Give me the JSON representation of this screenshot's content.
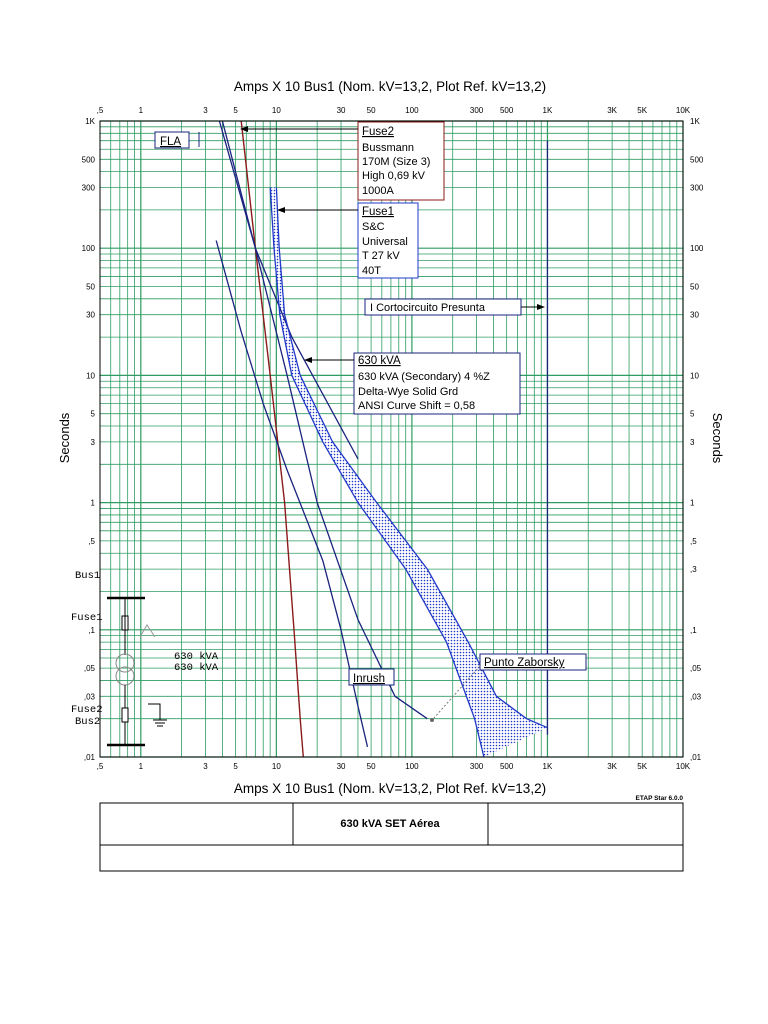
{
  "chart_data": {
    "type": "line",
    "scale": {
      "x": "log",
      "y": "log"
    },
    "xlim": [
      0.5,
      10000
    ],
    "ylim": [
      0.01,
      1000
    ],
    "x_title_top": "Amps  X  10   Bus1 (Nom. kV=13,2, Plot Ref. kV=13,2)",
    "x_title_bottom": "Amps  X  10   Bus1 (Nom. kV=13,2, Plot Ref. kV=13,2)",
    "y_title": "Seconds",
    "x_ticks": [
      {
        "v": 0.5,
        "t": ",5"
      },
      {
        "v": 1,
        "t": "1"
      },
      {
        "v": 3,
        "t": "3"
      },
      {
        "v": 5,
        "t": "5"
      },
      {
        "v": 10,
        "t": "10"
      },
      {
        "v": 30,
        "t": "30"
      },
      {
        "v": 50,
        "t": "50"
      },
      {
        "v": 100,
        "t": "100"
      },
      {
        "v": 300,
        "t": "300"
      },
      {
        "v": 500,
        "t": "500"
      },
      {
        "v": 1000,
        "t": "1K"
      },
      {
        "v": 3000,
        "t": "3K"
      },
      {
        "v": 5000,
        "t": "5K"
      },
      {
        "v": 10000,
        "t": "10K"
      }
    ],
    "y_ticks_left": [
      {
        "v": 1000,
        "t": "1K"
      },
      {
        "v": 500,
        "t": "500"
      },
      {
        "v": 300,
        "t": "300"
      },
      {
        "v": 100,
        "t": "100"
      },
      {
        "v": 50,
        "t": "50"
      },
      {
        "v": 30,
        "t": "30"
      },
      {
        "v": 10,
        "t": "10"
      },
      {
        "v": 5,
        "t": "5"
      },
      {
        "v": 3,
        "t": "3"
      },
      {
        "v": 1,
        "t": "1"
      },
      {
        "v": 0.5,
        "t": ",5"
      },
      {
        "v": 0.1,
        "t": ",1"
      },
      {
        "v": 0.05,
        "t": ",05"
      },
      {
        "v": 0.03,
        "t": ",03"
      },
      {
        "v": 0.01,
        "t": ",01"
      }
    ],
    "y_ticks_right": [
      {
        "v": 1000,
        "t": "1K"
      },
      {
        "v": 500,
        "t": "500"
      },
      {
        "v": 300,
        "t": "300"
      },
      {
        "v": 100,
        "t": "100"
      },
      {
        "v": 50,
        "t": "50"
      },
      {
        "v": 30,
        "t": "30"
      },
      {
        "v": 10,
        "t": "10"
      },
      {
        "v": 5,
        "t": "5"
      },
      {
        "v": 3,
        "t": "3"
      },
      {
        "v": 1,
        "t": "1"
      },
      {
        "v": 0.5,
        "t": ",5"
      },
      {
        "v": 0.3,
        "t": ",3"
      },
      {
        "v": 0.1,
        "t": ",1"
      },
      {
        "v": 0.05,
        "t": ",05"
      },
      {
        "v": 0.03,
        "t": ",03"
      },
      {
        "v": 0.01,
        "t": ",01"
      }
    ],
    "curves": [
      {
        "id": "fuse2",
        "color": "#8b1a1a",
        "points": [
          [
            5.5,
            1000
          ],
          [
            7,
            100
          ],
          [
            9,
            10
          ],
          [
            11.5,
            1
          ],
          [
            13.5,
            0.1
          ],
          [
            15,
            0.02
          ],
          [
            15.8,
            0.01
          ]
        ]
      },
      {
        "id": "transformer-1",
        "color": "#1a237e",
        "points": [
          [
            3.8,
            1000
          ],
          [
            7,
            100
          ],
          [
            13,
            20
          ],
          [
            24,
            6
          ],
          [
            40,
            2.2
          ]
        ]
      },
      {
        "id": "transformer-2",
        "color": "#1a237e",
        "points": [
          [
            3.6,
            115
          ],
          [
            5.5,
            22
          ],
          [
            8,
            6
          ],
          [
            12,
            1.8
          ],
          [
            22,
            0.35
          ],
          [
            30,
            0.1
          ],
          [
            40,
            0.025
          ],
          [
            47,
            0.012
          ]
        ]
      },
      {
        "id": "inrush",
        "color": "#1a237e",
        "points": [
          [
            4,
            1000
          ],
          [
            7,
            100
          ],
          [
            12,
            10
          ],
          [
            20,
            1
          ],
          [
            40,
            0.12
          ],
          [
            75,
            0.03
          ],
          [
            130,
            0.02
          ]
        ]
      },
      {
        "id": "fuse1-min",
        "color": "#2038c8",
        "points": [
          [
            9,
            300
          ],
          [
            9.6,
            100
          ],
          [
            10.6,
            30
          ],
          [
            13,
            10
          ],
          [
            22,
            3
          ],
          [
            40,
            1
          ],
          [
            90,
            0.3
          ],
          [
            180,
            0.08
          ],
          [
            290,
            0.02
          ],
          [
            340,
            0.01
          ]
        ]
      },
      {
        "id": "fuse1-max",
        "color": "#2038c8",
        "points": [
          [
            10,
            300
          ],
          [
            10.5,
            100
          ],
          [
            11.5,
            30
          ],
          [
            15,
            10
          ],
          [
            26,
            3
          ],
          [
            55,
            1
          ],
          [
            130,
            0.3
          ],
          [
            260,
            0.08
          ],
          [
            420,
            0.03
          ],
          [
            700,
            0.02
          ],
          [
            1000,
            0.017
          ]
        ]
      }
    ],
    "fla_line": {
      "x": 2.4,
      "y1": 800,
      "y2": 600
    },
    "short_circuit_line": {
      "x": 1000,
      "color": "#1a237e",
      "label": "I Cortocircuito Presunta"
    },
    "annotations": [
      {
        "id": "fuse2",
        "title": "Fuse2",
        "lines": [
          "Bussmann",
          "170M (Size 3)",
          "High  0,69 kV",
          "1000A"
        ]
      },
      {
        "id": "fuse1",
        "title": "Fuse1",
        "lines": [
          "S&C",
          "Universal",
          "T  27 kV",
          "40T"
        ]
      },
      {
        "id": "transformer",
        "title": "630 kVA",
        "lines": [
          "630 kVA (Secondary)  4 %Z",
          "Delta-Wye Solid Grd",
          "ANSI Curve Shift = 0,58"
        ]
      },
      {
        "id": "fla",
        "title": "FLA",
        "lines": []
      },
      {
        "id": "inrush",
        "title": "Inrush",
        "lines": []
      },
      {
        "id": "zaborsky",
        "title": "Punto Zaborsky",
        "lines": []
      }
    ],
    "one_line": {
      "bus1": "Bus1",
      "fuse1": "Fuse1",
      "transformer_a": "630 kVA",
      "transformer_b": "630 kVA",
      "fuse2": "Fuse2",
      "bus2": "Bus2"
    }
  },
  "title_block": {
    "project": "630 kVA SET Aérea",
    "software": "ETAP Star 6.0.0"
  }
}
